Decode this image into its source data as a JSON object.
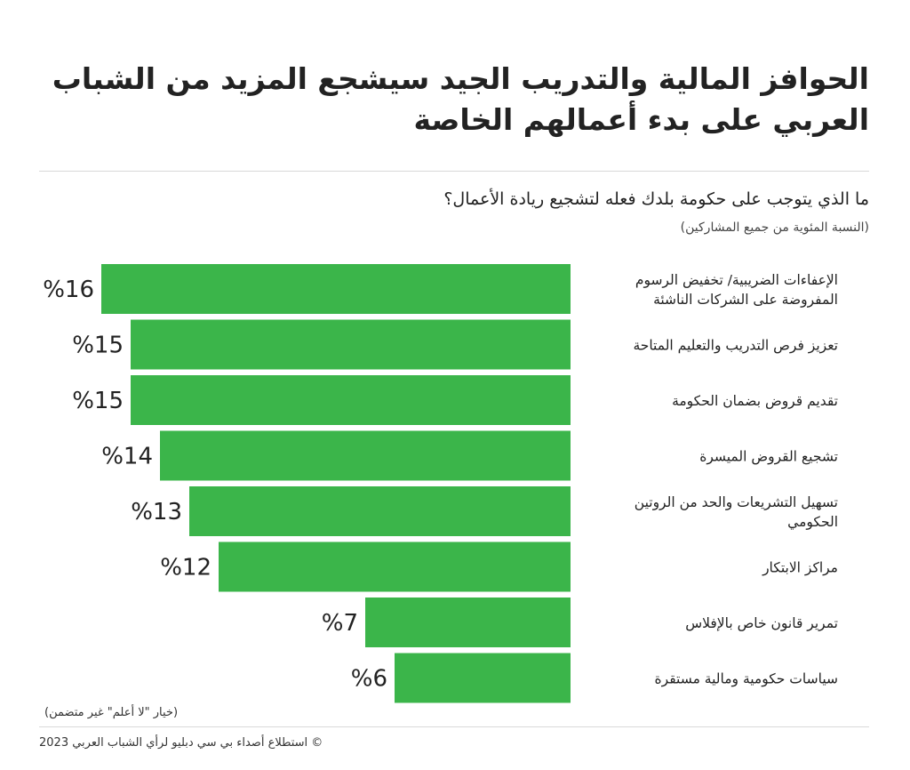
{
  "title": "الحوافز المالية والتدريب الجيد سيشجع المزيد من الشباب العربي على بدء أعمالهم الخاصة",
  "question": "ما الذي يتوجب على حكومة بلدك فعله لتشجيع ريادة الأعمال؟",
  "base_note": "(النسبة المئوية من جميع المشاركين)",
  "footnote": "(خيار \"لا أعلم\" غير متضمن)",
  "source": "© استطلاع أصداء بي سي دبليو لرأي الشباب العربي 2023",
  "colors": {
    "bar": "#3bb54a",
    "text": "#222222",
    "rule": "#d9d9d9"
  },
  "chart_data": {
    "type": "bar",
    "orientation": "horizontal",
    "unit": "%",
    "categories": [
      [
        "الإعفاءات الضريبية/ تخفيض الرسوم",
        "المفروضة على الشركات الناشئة"
      ],
      [
        "تعزيز فرص التدريب والتعليم المتاحة"
      ],
      [
        "تقديم قروض بضمان الحكومة"
      ],
      [
        "تشجيع القروض الميسرة"
      ],
      [
        "تسهيل التشريعات والحد من الروتين",
        "الحكومي"
      ],
      [
        "مراكز الابتكار"
      ],
      [
        "تمرير قانون خاص بالإفلاس"
      ],
      [
        "سياسات حكومية ومالية مستقرة"
      ]
    ],
    "values": [
      16,
      15,
      15,
      14,
      13,
      12,
      7,
      6
    ],
    "value_labels": [
      "%16",
      "%15",
      "%15",
      "%14",
      "%13",
      "%12",
      "%7",
      "%6"
    ],
    "xlim": [
      0,
      16
    ],
    "grid": false,
    "legend": "none"
  }
}
